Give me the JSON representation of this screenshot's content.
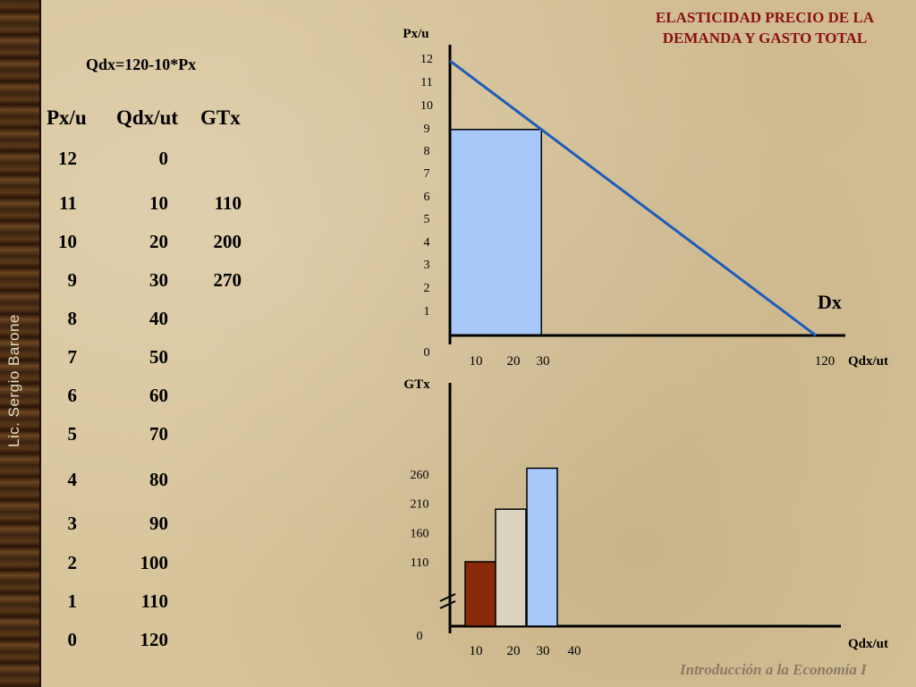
{
  "sidebar": {
    "label": "Lic. Sergio Barone"
  },
  "title": {
    "line1": "ELASTICIDAD PRECIO DE LA",
    "line2": "DEMANDA Y GASTO TOTAL"
  },
  "formula": "Qdx=120-10*Px",
  "table": {
    "headers": [
      "Px/u",
      "Qdx/ut",
      "GTx"
    ],
    "rows": [
      [
        "12",
        "0",
        ""
      ],
      [
        "11",
        "10",
        "110"
      ],
      [
        "10",
        "20",
        "200"
      ],
      [
        "9",
        "30",
        "270"
      ],
      [
        "8",
        "40",
        ""
      ],
      [
        "7",
        "50",
        ""
      ],
      [
        "6",
        "60",
        ""
      ],
      [
        "5",
        "70",
        ""
      ],
      [
        "4",
        "80",
        ""
      ],
      [
        "3",
        "90",
        ""
      ],
      [
        "2",
        "100",
        ""
      ],
      [
        "1",
        "110",
        ""
      ],
      [
        "0",
        "120",
        ""
      ]
    ]
  },
  "footer": "Introducción a la Economía I",
  "colors": {
    "title": "#8b1010",
    "demand_line": "#1e5cb8",
    "rect_fill": "#a8c8fa",
    "bar_colors": [
      "#8b2a0a",
      "#dad3c0",
      "#a8c8fa"
    ]
  },
  "chart_data": [
    {
      "type": "line",
      "ylabel": "Px/u",
      "xlabel": "Qdx/ut",
      "curve_label": "Dx",
      "y_ticks": [
        "12",
        "11",
        "10",
        "9",
        "8",
        "7",
        "6",
        "5",
        "4",
        "3",
        "2",
        "1",
        "0"
      ],
      "x_ticks": [
        {
          "label": "10",
          "x": 10
        },
        {
          "label": "20",
          "x": 20
        },
        {
          "label": "30",
          "x": 30
        },
        {
          "label": "120",
          "x": 120
        }
      ],
      "series": [
        {
          "x": [
            0,
            120
          ],
          "y": [
            12,
            0
          ]
        }
      ],
      "highlight_rect": {
        "qty": 30,
        "price": 9
      },
      "xlim": [
        0,
        120
      ],
      "ylim": [
        0,
        12
      ]
    },
    {
      "type": "bar",
      "ylabel": "GTx",
      "xlabel": "Qdx/ut",
      "x_ticks": [
        "10",
        "20",
        "30",
        "40"
      ],
      "y_ticks": [
        {
          "label": "260",
          "y": 260
        },
        {
          "label": "210",
          "y": 210
        },
        {
          "label": "160",
          "y": 160
        },
        {
          "label": "110",
          "y": 110
        },
        {
          "label": "0",
          "y": 0
        }
      ],
      "categories": [
        "10",
        "20",
        "30"
      ],
      "values": [
        110,
        200,
        270
      ],
      "axis_break": true
    }
  ]
}
